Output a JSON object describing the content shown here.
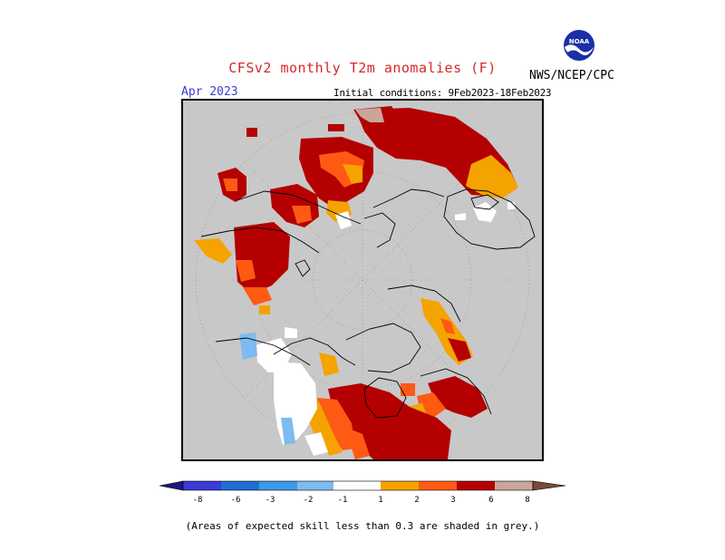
{
  "header": {
    "title": "CFSv2 monthly T2m anomalies (F)",
    "agency": "NWS/NCEP/CPC",
    "month": "Apr 2023",
    "initial_conditions": "Initial conditions: 9Feb2023-18Feb2023",
    "logo_text": "NOAA"
  },
  "colorbar": {
    "labels": [
      "-8",
      "-6",
      "-3",
      "-2",
      "-1",
      "1",
      "2",
      "3",
      "6",
      "8"
    ],
    "colors": [
      "#1a1a80",
      "#3b3bd6",
      "#1f6fd0",
      "#3c9be8",
      "#7dbbf0",
      "#ffffff",
      "#f5a300",
      "#ff5a14",
      "#c80000",
      "#8c0000",
      "#c9a69b",
      "#7a4a3c"
    ]
  },
  "legend_colors": {
    "no_skill_grey": "#c8c8c8",
    "orange_1_2": "#f5a300",
    "redorange_2_3": "#ff5a14",
    "darkred_3_6": "#b40000",
    "pink_6_8": "#c9a69b",
    "lightblue_m1_m2": "#7dbbf0",
    "white_neutral": "#ffffff"
  },
  "footnote": "(Areas of expected skill less than 0.3 are shaded in grey.)"
}
